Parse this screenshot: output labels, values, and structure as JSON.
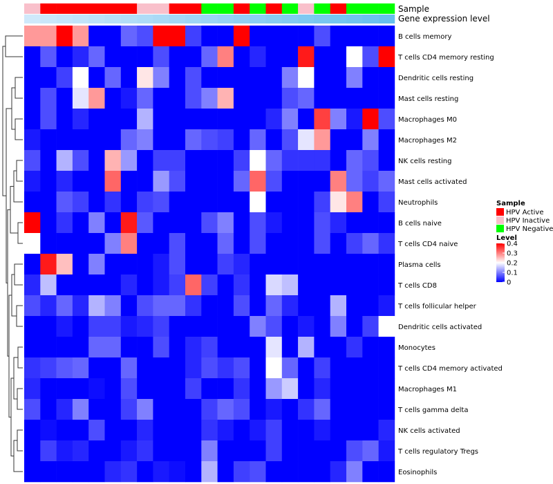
{
  "chart_data": {
    "type": "heatmap",
    "title": "",
    "xlabel": "",
    "ylabel": "",
    "annotation_tracks": [
      {
        "name": "Sample",
        "values": [
          "HPV Inactive",
          "HPV Active",
          "HPV Active",
          "HPV Active",
          "HPV Active",
          "HPV Active",
          "HPV Active",
          "HPV Inactive",
          "HPV Inactive",
          "HPV Active",
          "HPV Active",
          "HPV Negative",
          "HPV Negative",
          "HPV Active",
          "HPV Negative",
          "HPV Active",
          "HPV Negative",
          "HPV Inactive",
          "HPV Negative",
          "HPV Active",
          "HPV Negative",
          "HPV Negative",
          "HPV Negative"
        ]
      },
      {
        "name": "Gene expression level",
        "gradient": [
          "#cfe9fb",
          "#66bfee"
        ]
      }
    ],
    "rows": [
      {
        "name": "B cells memory",
        "values": [
          0.28,
          0.28,
          0.4,
          0.28,
          0,
          0,
          0.08,
          0.06,
          0.4,
          0.4,
          0.05,
          0,
          0,
          0.4,
          0,
          0,
          0,
          0,
          0.06,
          0,
          0,
          0,
          0
        ]
      },
      {
        "name": "T cells CD4 memory resting",
        "values": [
          0,
          0.07,
          0,
          0.03,
          0.08,
          0,
          0,
          0,
          0.06,
          0,
          0,
          0.08,
          0.3,
          0,
          0.03,
          0,
          0,
          0.38,
          0,
          0,
          0.2,
          0.06,
          0.4
        ]
      },
      {
        "name": "Dendritic cells resting",
        "values": [
          0,
          0,
          0.05,
          0.2,
          0,
          0.08,
          0,
          0.22,
          0.1,
          0,
          0.06,
          0,
          0,
          0,
          0,
          0,
          0.1,
          0.2,
          0,
          0,
          0.1,
          0,
          0
        ]
      },
      {
        "name": "Mast cells resting",
        "values": [
          0,
          0.06,
          0,
          0.18,
          0.28,
          0,
          0.02,
          0.08,
          0,
          0,
          0.06,
          0.1,
          0.26,
          0,
          0,
          0,
          0.06,
          0.08,
          0,
          0,
          0,
          0,
          0
        ]
      },
      {
        "name": "Macrophages M0",
        "values": [
          0,
          0.06,
          0,
          0.03,
          0,
          0,
          0,
          0.14,
          0,
          0,
          0,
          0,
          0,
          0,
          0,
          0.03,
          0.1,
          0,
          0.35,
          0.1,
          0.02,
          0.4,
          0.06
        ]
      },
      {
        "name": "Macrophages M2",
        "values": [
          0.02,
          0,
          0,
          0,
          0,
          0,
          0.08,
          0.1,
          0,
          0,
          0.08,
          0.06,
          0.05,
          0,
          0.08,
          0,
          0.06,
          0.18,
          0.28,
          0,
          0,
          0.1,
          0
        ]
      },
      {
        "name": "NK cells resting",
        "values": [
          0.06,
          0,
          0.14,
          0.06,
          0,
          0.26,
          0.12,
          0,
          0.05,
          0.05,
          0,
          0,
          0,
          0.05,
          0.2,
          0.08,
          0.04,
          0.04,
          0.04,
          0,
          0.08,
          0.06,
          0
        ]
      },
      {
        "name": "Mast cells activated",
        "values": [
          0.02,
          0,
          0.03,
          0,
          0,
          0.32,
          0,
          0,
          0.12,
          0.06,
          0,
          0,
          0,
          0.08,
          0.32,
          0.06,
          0,
          0,
          0,
          0.3,
          0.08,
          0.05,
          0.08
        ]
      },
      {
        "name": "Neutrophils",
        "values": [
          0,
          0,
          0.07,
          0.05,
          0,
          0.04,
          0,
          0.05,
          0.06,
          0,
          0,
          0,
          0,
          0,
          0.2,
          0,
          0,
          0,
          0.05,
          0.22,
          0.3,
          0,
          0.05
        ]
      },
      {
        "name": "B cells naive",
        "values": [
          0.4,
          0,
          0.04,
          0,
          0.1,
          0,
          0.38,
          0.07,
          0,
          0,
          0,
          0.06,
          0.1,
          0,
          0.06,
          0.02,
          0,
          0,
          0.06,
          0.03,
          0,
          0,
          0
        ]
      },
      {
        "name": "T cells CD4 naive",
        "values": [
          0.2,
          0,
          0,
          0,
          0,
          0.1,
          0.3,
          0,
          0,
          0.06,
          0,
          0,
          0.08,
          0,
          0.06,
          0,
          0,
          0,
          0.06,
          0,
          0.05,
          0.08,
          0.04
        ]
      },
      {
        "name": "Plasma cells",
        "values": [
          0,
          0.38,
          0.25,
          0,
          0.1,
          0,
          0,
          0,
          0.02,
          0.06,
          0,
          0,
          0.05,
          0.03,
          0,
          0,
          0,
          0,
          0,
          0,
          0,
          0,
          0
        ]
      },
      {
        "name": "T cells CD8",
        "values": [
          0.03,
          0.15,
          0,
          0,
          0,
          0,
          0.03,
          0,
          0.02,
          0.05,
          0.32,
          0.05,
          0,
          0.04,
          0,
          0.17,
          0.15,
          0,
          0,
          0,
          0,
          0,
          0
        ]
      },
      {
        "name": "T cells follicular helper",
        "values": [
          0.06,
          0.03,
          0.08,
          0.03,
          0.14,
          0.1,
          0,
          0.06,
          0.08,
          0.08,
          0.04,
          0,
          0,
          0.06,
          0,
          0.08,
          0.03,
          0,
          0,
          0.14,
          0,
          0,
          0.02
        ]
      },
      {
        "name": "Dendritic cells activated",
        "values": [
          0,
          0,
          0.02,
          0,
          0.05,
          0.05,
          0.02,
          0.03,
          0.05,
          0,
          0,
          0,
          0,
          0,
          0.1,
          0.06,
          0,
          0.02,
          0,
          0.1,
          0,
          0.05,
          0.2
        ]
      },
      {
        "name": "Monocytes",
        "values": [
          0,
          0,
          0,
          0,
          0.08,
          0.08,
          0,
          0,
          0.06,
          0,
          0.03,
          0.05,
          0,
          0,
          0,
          0.18,
          0,
          0.14,
          0,
          0,
          0.04,
          0,
          0
        ]
      },
      {
        "name": "T cells CD4 memory activated",
        "values": [
          0.04,
          0.05,
          0.07,
          0.08,
          0,
          0,
          0.08,
          0,
          0,
          0,
          0.03,
          0.06,
          0.04,
          0.06,
          0,
          0.2,
          0.08,
          0,
          0.05,
          0,
          0,
          0,
          0
        ]
      },
      {
        "name": "Macrophages M1",
        "values": [
          0.03,
          0,
          0,
          0,
          0.01,
          0,
          0.06,
          0,
          0,
          0,
          0.05,
          0,
          0,
          0.04,
          0,
          0.12,
          0.16,
          0,
          0.03,
          0,
          0,
          0,
          0
        ]
      },
      {
        "name": "T cells gamma delta",
        "values": [
          0.06,
          0,
          0.03,
          0.1,
          0,
          0,
          0.05,
          0.1,
          0,
          0,
          0,
          0.05,
          0.08,
          0.06,
          0,
          0.02,
          0,
          0.04,
          0.08,
          0,
          0,
          0,
          0
        ]
      },
      {
        "name": "NK cells activated",
        "values": [
          0,
          0.01,
          0,
          0,
          0.06,
          0,
          0,
          0.03,
          0,
          0,
          0,
          0.04,
          0.02,
          0,
          0.02,
          0.05,
          0,
          0,
          0.02,
          0,
          0,
          0,
          0.03
        ]
      },
      {
        "name": "T cells regulatory  Tregs",
        "values": [
          0,
          0.05,
          0.02,
          0.03,
          0,
          0,
          0.02,
          0.04,
          0,
          0,
          0,
          0.1,
          0,
          0,
          0,
          0.05,
          0,
          0,
          0,
          0,
          0.06,
          0.08,
          0.02
        ]
      },
      {
        "name": "Eosinophils",
        "values": [
          0,
          0,
          0,
          0,
          0,
          0.03,
          0.04,
          0,
          0.02,
          0.01,
          0,
          0.14,
          0,
          0.05,
          0.06,
          0,
          0,
          0,
          0,
          0.03,
          0.1,
          0,
          0
        ]
      }
    ],
    "color_scale": {
      "min": 0,
      "max": 0.4,
      "low": "#0000ff",
      "mid": "#ffffff",
      "high": "#ff0000",
      "midpoint": 0.2
    },
    "legend_sample": {
      "title": "Sample",
      "entries": [
        {
          "label": "HPV Active",
          "color": "#ff0000"
        },
        {
          "label": "HPV Inactive",
          "color": "#f9c0cb"
        },
        {
          "label": "HPV Negative",
          "color": "#00ff00"
        }
      ]
    },
    "legend_level": {
      "title": "Level",
      "ticks": [
        0.4,
        0.3,
        0.2,
        0.1,
        0
      ]
    }
  }
}
